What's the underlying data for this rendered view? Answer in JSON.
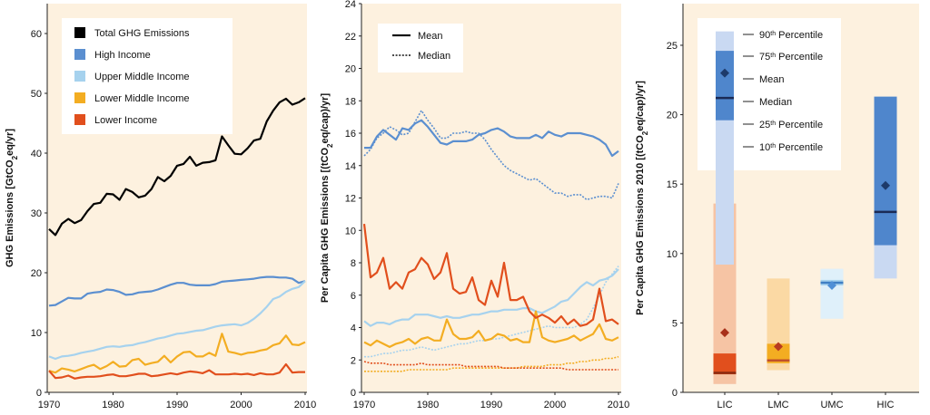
{
  "colors": {
    "panel_bg": "#fdf1df",
    "total": "#000000",
    "high": "#5b8fd0",
    "upper_middle": "#a6d2ee",
    "lower_middle": "#f3ad22",
    "lower": "#e14f1d"
  },
  "chart_data": [
    {
      "type": "line",
      "title": "",
      "xlabel": "",
      "ylabel": "GHG Emissions [GtCO2eq/yr]",
      "ylabel_parts": [
        "GHG Emissions [GtCO",
        "2",
        "eq/yr]"
      ],
      "xlim": [
        1970,
        2010
      ],
      "ylim": [
        0,
        65
      ],
      "xticks": [
        1970,
        1980,
        1990,
        2000,
        2010
      ],
      "yticks": [
        0,
        10,
        20,
        30,
        40,
        50,
        60
      ],
      "legend": [
        "Total GHG Emissions",
        "High  Income",
        "Upper Middle Income",
        "Lower Middle Income",
        "Lower Income"
      ],
      "legend_position": "top-left",
      "x": [
        1970,
        1971,
        1972,
        1973,
        1974,
        1975,
        1976,
        1977,
        1978,
        1979,
        1980,
        1981,
        1982,
        1983,
        1984,
        1985,
        1986,
        1987,
        1988,
        1989,
        1990,
        1991,
        1992,
        1993,
        1994,
        1995,
        1996,
        1997,
        1998,
        1999,
        2000,
        2001,
        2002,
        2003,
        2004,
        2005,
        2006,
        2007,
        2008,
        2009,
        2010
      ],
      "series": [
        {
          "name": "Total GHG Emissions",
          "color_key": "total",
          "dash": "solid",
          "values": [
            27.3,
            26.3,
            28.2,
            29.0,
            28.3,
            28.8,
            30.3,
            31.5,
            31.7,
            33.2,
            33.1,
            32.2,
            34.0,
            33.5,
            32.6,
            32.9,
            34.0,
            36.0,
            35.3,
            36.2,
            37.9,
            38.2,
            39.4,
            37.9,
            38.4,
            38.5,
            38.8,
            42.8,
            41.3,
            39.9,
            39.8,
            40.8,
            42.1,
            42.4,
            45.3,
            47.1,
            48.5,
            49.1,
            48.1,
            48.5,
            49.2
          ]
        },
        {
          "name": "High  Income",
          "color_key": "high",
          "dash": "solid",
          "values": [
            14.5,
            14.6,
            15.2,
            15.8,
            15.7,
            15.7,
            16.5,
            16.7,
            16.8,
            17.2,
            17.1,
            16.8,
            16.3,
            16.4,
            16.7,
            16.8,
            16.9,
            17.2,
            17.6,
            18.0,
            18.3,
            18.3,
            18.0,
            17.9,
            17.9,
            17.9,
            18.1,
            18.5,
            18.6,
            18.7,
            18.8,
            18.9,
            19.0,
            19.2,
            19.3,
            19.3,
            19.2,
            19.2,
            19.0,
            18.3,
            18.6
          ]
        },
        {
          "name": "Upper Middle Income",
          "color_key": "upper_middle",
          "dash": "solid",
          "values": [
            6.0,
            5.6,
            6.0,
            6.1,
            6.3,
            6.6,
            6.8,
            7.0,
            7.3,
            7.6,
            7.7,
            7.6,
            7.8,
            7.9,
            8.2,
            8.4,
            8.7,
            9.0,
            9.2,
            9.5,
            9.8,
            9.9,
            10.1,
            10.3,
            10.4,
            10.7,
            11.0,
            11.2,
            11.3,
            11.4,
            11.2,
            11.6,
            12.3,
            13.2,
            14.3,
            15.6,
            16.0,
            16.8,
            17.3,
            17.6,
            18.6
          ]
        },
        {
          "name": "Lower Middle Income",
          "color_key": "lower_middle",
          "dash": "solid",
          "values": [
            3.6,
            3.3,
            4.0,
            3.8,
            3.5,
            3.9,
            4.3,
            4.6,
            3.9,
            4.4,
            5.1,
            4.3,
            4.4,
            5.4,
            5.6,
            4.6,
            4.9,
            5.1,
            6.1,
            5.0,
            6.0,
            6.7,
            6.8,
            6.0,
            6.0,
            6.6,
            6.1,
            9.8,
            6.8,
            6.6,
            6.3,
            6.6,
            6.7,
            7.0,
            7.2,
            7.9,
            8.2,
            9.5,
            8.0,
            7.9,
            8.4
          ]
        },
        {
          "name": "Lower Income",
          "color_key": "lower",
          "dash": "solid",
          "values": [
            3.6,
            2.4,
            2.5,
            2.8,
            2.3,
            2.5,
            2.6,
            2.6,
            2.7,
            2.9,
            3.0,
            2.7,
            2.7,
            2.9,
            3.1,
            3.1,
            2.7,
            2.8,
            3.0,
            3.2,
            3.0,
            3.3,
            3.5,
            3.4,
            3.2,
            3.7,
            3.0,
            3.0,
            3.0,
            3.1,
            3.0,
            3.1,
            2.9,
            3.2,
            3.0,
            3.0,
            3.3,
            4.7,
            3.3,
            3.4,
            3.4
          ]
        }
      ]
    },
    {
      "type": "line",
      "title": "",
      "xlabel": "",
      "ylabel": "Per Capita GHG Emissions [(tCO2eq/cap)/yr]",
      "ylabel_parts": [
        "Per Capita GHG Emissions [(tCO",
        "2",
        "eq/cap)/yr]"
      ],
      "xlim": [
        1970,
        2010
      ],
      "ylim": [
        0,
        24
      ],
      "xticks": [
        1970,
        1980,
        1990,
        2000,
        2010
      ],
      "yticks": [
        0,
        2,
        4,
        6,
        8,
        10,
        12,
        14,
        16,
        18,
        20,
        22,
        24
      ],
      "legend": [
        "Mean",
        "Median"
      ],
      "legend_position": "top-left",
      "x": [
        1970,
        1971,
        1972,
        1973,
        1974,
        1975,
        1976,
        1977,
        1978,
        1979,
        1980,
        1981,
        1982,
        1983,
        1984,
        1985,
        1986,
        1987,
        1988,
        1989,
        1990,
        1991,
        1992,
        1993,
        1994,
        1995,
        1996,
        1997,
        1998,
        1999,
        2000,
        2001,
        2002,
        2003,
        2004,
        2005,
        2006,
        2007,
        2008,
        2009,
        2010
      ],
      "series": [
        {
          "name": "High Income (Mean)",
          "color_key": "high",
          "dash": "solid",
          "values": [
            15.1,
            15.1,
            15.8,
            16.2,
            15.9,
            15.6,
            16.3,
            16.2,
            16.6,
            16.8,
            16.4,
            15.9,
            15.4,
            15.3,
            15.5,
            15.5,
            15.5,
            15.6,
            15.9,
            16.0,
            16.2,
            16.3,
            16.1,
            15.8,
            15.7,
            15.7,
            15.7,
            15.9,
            15.7,
            16.1,
            15.9,
            15.8,
            16.0,
            16.0,
            16.0,
            15.9,
            15.8,
            15.6,
            15.3,
            14.6,
            14.9
          ]
        },
        {
          "name": "High Income (Median)",
          "color_key": "high",
          "dash": "dotted",
          "values": [
            14.6,
            15.0,
            15.7,
            16.0,
            16.4,
            16.2,
            15.9,
            16.0,
            16.7,
            17.4,
            16.8,
            16.3,
            15.7,
            15.7,
            16.0,
            16.0,
            16.1,
            16.0,
            16.0,
            15.6,
            15.0,
            14.5,
            14.0,
            13.7,
            13.5,
            13.3,
            13.1,
            13.2,
            12.9,
            12.6,
            12.3,
            12.3,
            12.1,
            12.2,
            12.2,
            11.9,
            12.0,
            12.1,
            12.1,
            12.0,
            12.9
          ]
        },
        {
          "name": "Upper Middle Income (Mean)",
          "color_key": "upper_middle",
          "dash": "solid",
          "values": [
            4.4,
            4.1,
            4.3,
            4.3,
            4.2,
            4.4,
            4.5,
            4.5,
            4.8,
            4.8,
            4.8,
            4.7,
            4.6,
            4.7,
            4.6,
            4.6,
            4.7,
            4.8,
            4.8,
            4.9,
            5.0,
            5.0,
            5.1,
            5.1,
            5.1,
            5.2,
            5.2,
            5.0,
            4.9,
            5.1,
            5.3,
            5.6,
            5.7,
            6.1,
            6.5,
            6.8,
            6.6,
            6.9,
            7.0,
            7.2,
            7.6
          ]
        },
        {
          "name": "Upper Middle Income (Median)",
          "color_key": "upper_middle",
          "dash": "dotted",
          "values": [
            2.2,
            2.2,
            2.3,
            2.4,
            2.4,
            2.5,
            2.6,
            2.6,
            2.7,
            2.8,
            2.7,
            2.6,
            2.7,
            2.8,
            2.9,
            3.0,
            3.0,
            3.1,
            3.2,
            3.2,
            3.3,
            3.3,
            3.4,
            3.5,
            3.6,
            3.7,
            3.8,
            3.9,
            4.0,
            4.1,
            4.0,
            4.0,
            4.0,
            4.0,
            4.2,
            4.5,
            5.2,
            6.0,
            6.8,
            7.3,
            7.8
          ]
        },
        {
          "name": "Lower Middle Income (Mean)",
          "color_key": "lower_middle",
          "dash": "solid",
          "values": [
            3.1,
            2.9,
            3.2,
            3.0,
            2.8,
            3.0,
            3.1,
            3.3,
            3.0,
            3.3,
            3.4,
            3.2,
            3.2,
            4.5,
            3.6,
            3.3,
            3.3,
            3.4,
            3.8,
            3.2,
            3.3,
            3.6,
            3.5,
            3.2,
            3.3,
            3.1,
            3.1,
            5.0,
            3.4,
            3.2,
            3.1,
            3.2,
            3.3,
            3.5,
            3.2,
            3.4,
            3.6,
            4.2,
            3.3,
            3.2,
            3.4
          ]
        },
        {
          "name": "Lower Middle Income (Median)",
          "color_key": "lower_middle",
          "dash": "dotted",
          "values": [
            1.3,
            1.3,
            1.3,
            1.3,
            1.3,
            1.3,
            1.3,
            1.4,
            1.4,
            1.4,
            1.4,
            1.4,
            1.4,
            1.4,
            1.5,
            1.5,
            1.5,
            1.5,
            1.5,
            1.5,
            1.5,
            1.5,
            1.5,
            1.5,
            1.5,
            1.6,
            1.6,
            1.6,
            1.6,
            1.7,
            1.7,
            1.7,
            1.8,
            1.8,
            1.9,
            1.9,
            2.0,
            2.0,
            2.1,
            2.1,
            2.2
          ]
        },
        {
          "name": "Lower Income (Mean)",
          "color_key": "lower",
          "dash": "solid",
          "values": [
            10.4,
            7.1,
            7.4,
            8.3,
            6.4,
            6.8,
            6.4,
            7.4,
            7.6,
            8.3,
            7.9,
            7.0,
            7.4,
            8.6,
            6.4,
            6.1,
            6.2,
            7.1,
            5.7,
            5.4,
            6.9,
            5.9,
            8.0,
            5.7,
            5.7,
            5.9,
            5.0,
            4.6,
            4.8,
            4.6,
            4.3,
            4.7,
            4.2,
            4.5,
            4.1,
            4.2,
            4.5,
            6.4,
            4.4,
            4.5,
            4.2
          ]
        },
        {
          "name": "Lower Income (Median)",
          "color_key": "lower",
          "dash": "dotted",
          "values": [
            1.9,
            1.8,
            1.8,
            1.8,
            1.7,
            1.7,
            1.7,
            1.7,
            1.7,
            1.8,
            1.7,
            1.7,
            1.7,
            1.7,
            1.7,
            1.7,
            1.6,
            1.6,
            1.6,
            1.6,
            1.6,
            1.6,
            1.5,
            1.5,
            1.5,
            1.5,
            1.5,
            1.5,
            1.5,
            1.5,
            1.5,
            1.5,
            1.4,
            1.4,
            1.4,
            1.4,
            1.4,
            1.4,
            1.4,
            1.4,
            1.4
          ]
        }
      ]
    },
    {
      "type": "bar",
      "subtype": "percentile-box",
      "title": "",
      "xlabel": "",
      "ylabel": "Per Capita GHG Emissions 2010 [(tCO2eq/cap)/yr]",
      "ylabel_parts": [
        "Per Capita GHG Emissions 2010 [(tCO",
        "2",
        "eq/cap)/yr]"
      ],
      "ylim": [
        0,
        28
      ],
      "yticks": [
        0,
        5,
        10,
        15,
        20,
        25
      ],
      "categories": [
        "LIC",
        "LMC",
        "UMC",
        "HIC"
      ],
      "boxes": [
        {
          "category": "LIC",
          "p10": 0.6,
          "p25": 1.3,
          "median": 1.4,
          "p75": 2.8,
          "p90": 13.6,
          "mean": 4.3,
          "color_key": "lower"
        },
        {
          "category": "LMC",
          "p10": 1.6,
          "p25": 2.1,
          "median": 2.3,
          "p75": 3.5,
          "p90": 8.2,
          "mean": 3.3,
          "color_key": "lower_middle"
        },
        {
          "category": "UMC",
          "p10": 5.3,
          "p25": 7.7,
          "median": 7.9,
          "p75": 8.1,
          "p90": 8.9,
          "mean": 7.7,
          "color_key": "upper_middle"
        },
        {
          "category": "HIC",
          "p10": 8.2,
          "p25": 10.6,
          "median": 13.0,
          "p75": 21.3,
          "p90": 21.3,
          "mean": 14.9,
          "color_key": "high"
        }
      ],
      "legend_key": {
        "p10": 9.2,
        "p25": 19.6,
        "median": 21.2,
        "p75": 24.6,
        "p90": 26.0,
        "mean": 23.0,
        "color_key": "high"
      },
      "legend": [
        {
          "label": "90",
          "sup": "th",
          "suffix": " Percentile"
        },
        {
          "label": "75",
          "sup": "th",
          "suffix": " Percentile"
        },
        {
          "label": "Mean",
          "sup": "",
          "suffix": ""
        },
        {
          "label": "Median",
          "sup": "",
          "suffix": ""
        },
        {
          "label": "25",
          "sup": "th",
          "suffix": " Percentile"
        },
        {
          "label": "10",
          "sup": "th",
          "suffix": " Percentile"
        }
      ],
      "legend_position": "top"
    }
  ]
}
